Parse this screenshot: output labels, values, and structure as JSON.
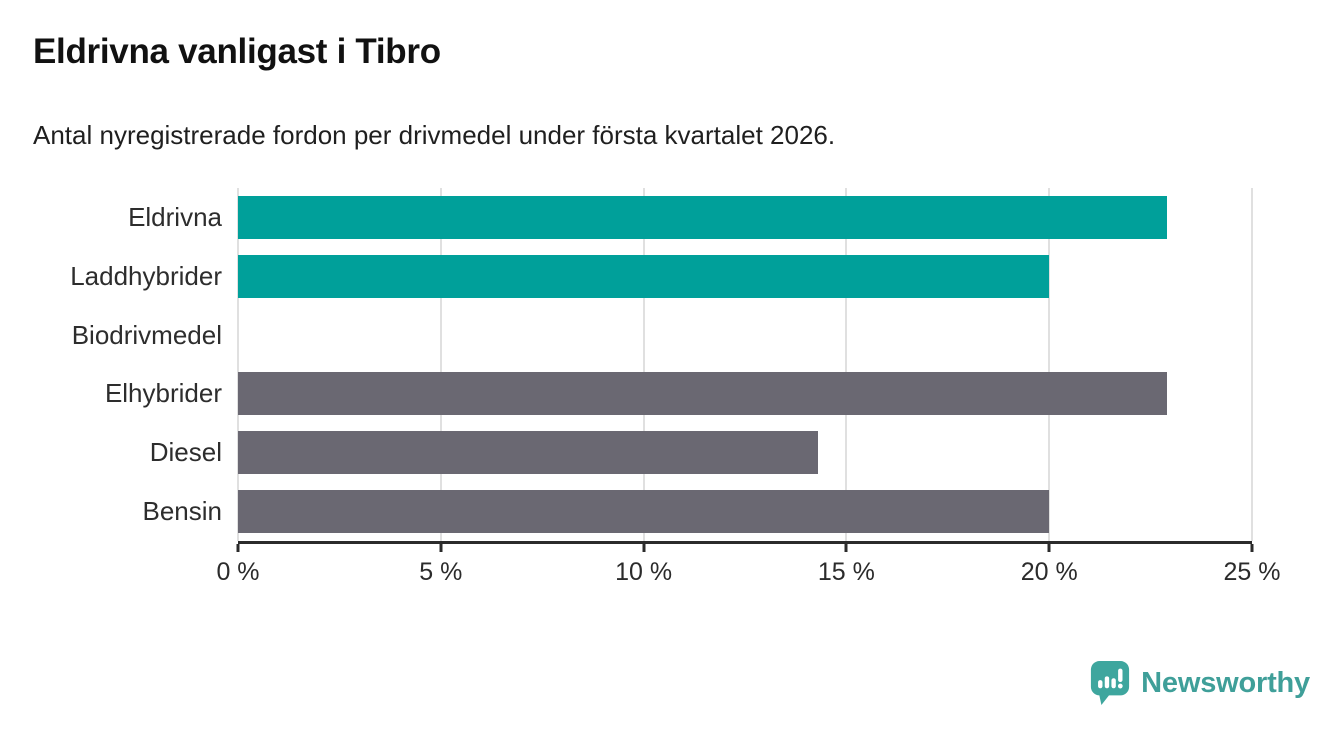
{
  "header": {
    "title": "Eldrivna vanligast i Tibro",
    "subtitle": "Antal nyregistrerade fordon per drivmedel under första kvartalet 2026."
  },
  "chart_data": {
    "type": "bar",
    "orientation": "horizontal",
    "title": "Eldrivna vanligast i Tibro",
    "subtitle": "Antal nyregistrerade fordon per drivmedel under första kvartalet 2026.",
    "categories": [
      "Eldrivna",
      "Laddhybrider",
      "Biodrivmedel",
      "Elhybrider",
      "Diesel",
      "Bensin"
    ],
    "values": [
      22.9,
      20,
      0,
      22.9,
      14.3,
      20
    ],
    "unit": "%",
    "bar_colors": [
      "#00a09a",
      "#00a09a",
      "#00a09a",
      "#6a6872",
      "#6a6872",
      "#6a6872"
    ],
    "highlight_color": "#00a09a",
    "default_color": "#6a6872",
    "xlim": [
      0,
      25
    ],
    "x_ticks": [
      {
        "value": 0,
        "label": "0 %"
      },
      {
        "value": 5,
        "label": "5 %"
      },
      {
        "value": 10,
        "label": "10 %"
      },
      {
        "value": 15,
        "label": "15 %"
      },
      {
        "value": 20,
        "label": "20 %"
      },
      {
        "value": 25,
        "label": "25 %"
      }
    ],
    "grid": "vertical",
    "gridline_color": "#e0e0e0",
    "axis_color": "#2b2b2b",
    "legend": "none"
  },
  "footer": {
    "brand": "Newsworthy",
    "brand_color": "#3f9f99",
    "logo_icon": "newsworthy-speech-bubble-chart-icon",
    "logo_color": "#3ea69e"
  }
}
